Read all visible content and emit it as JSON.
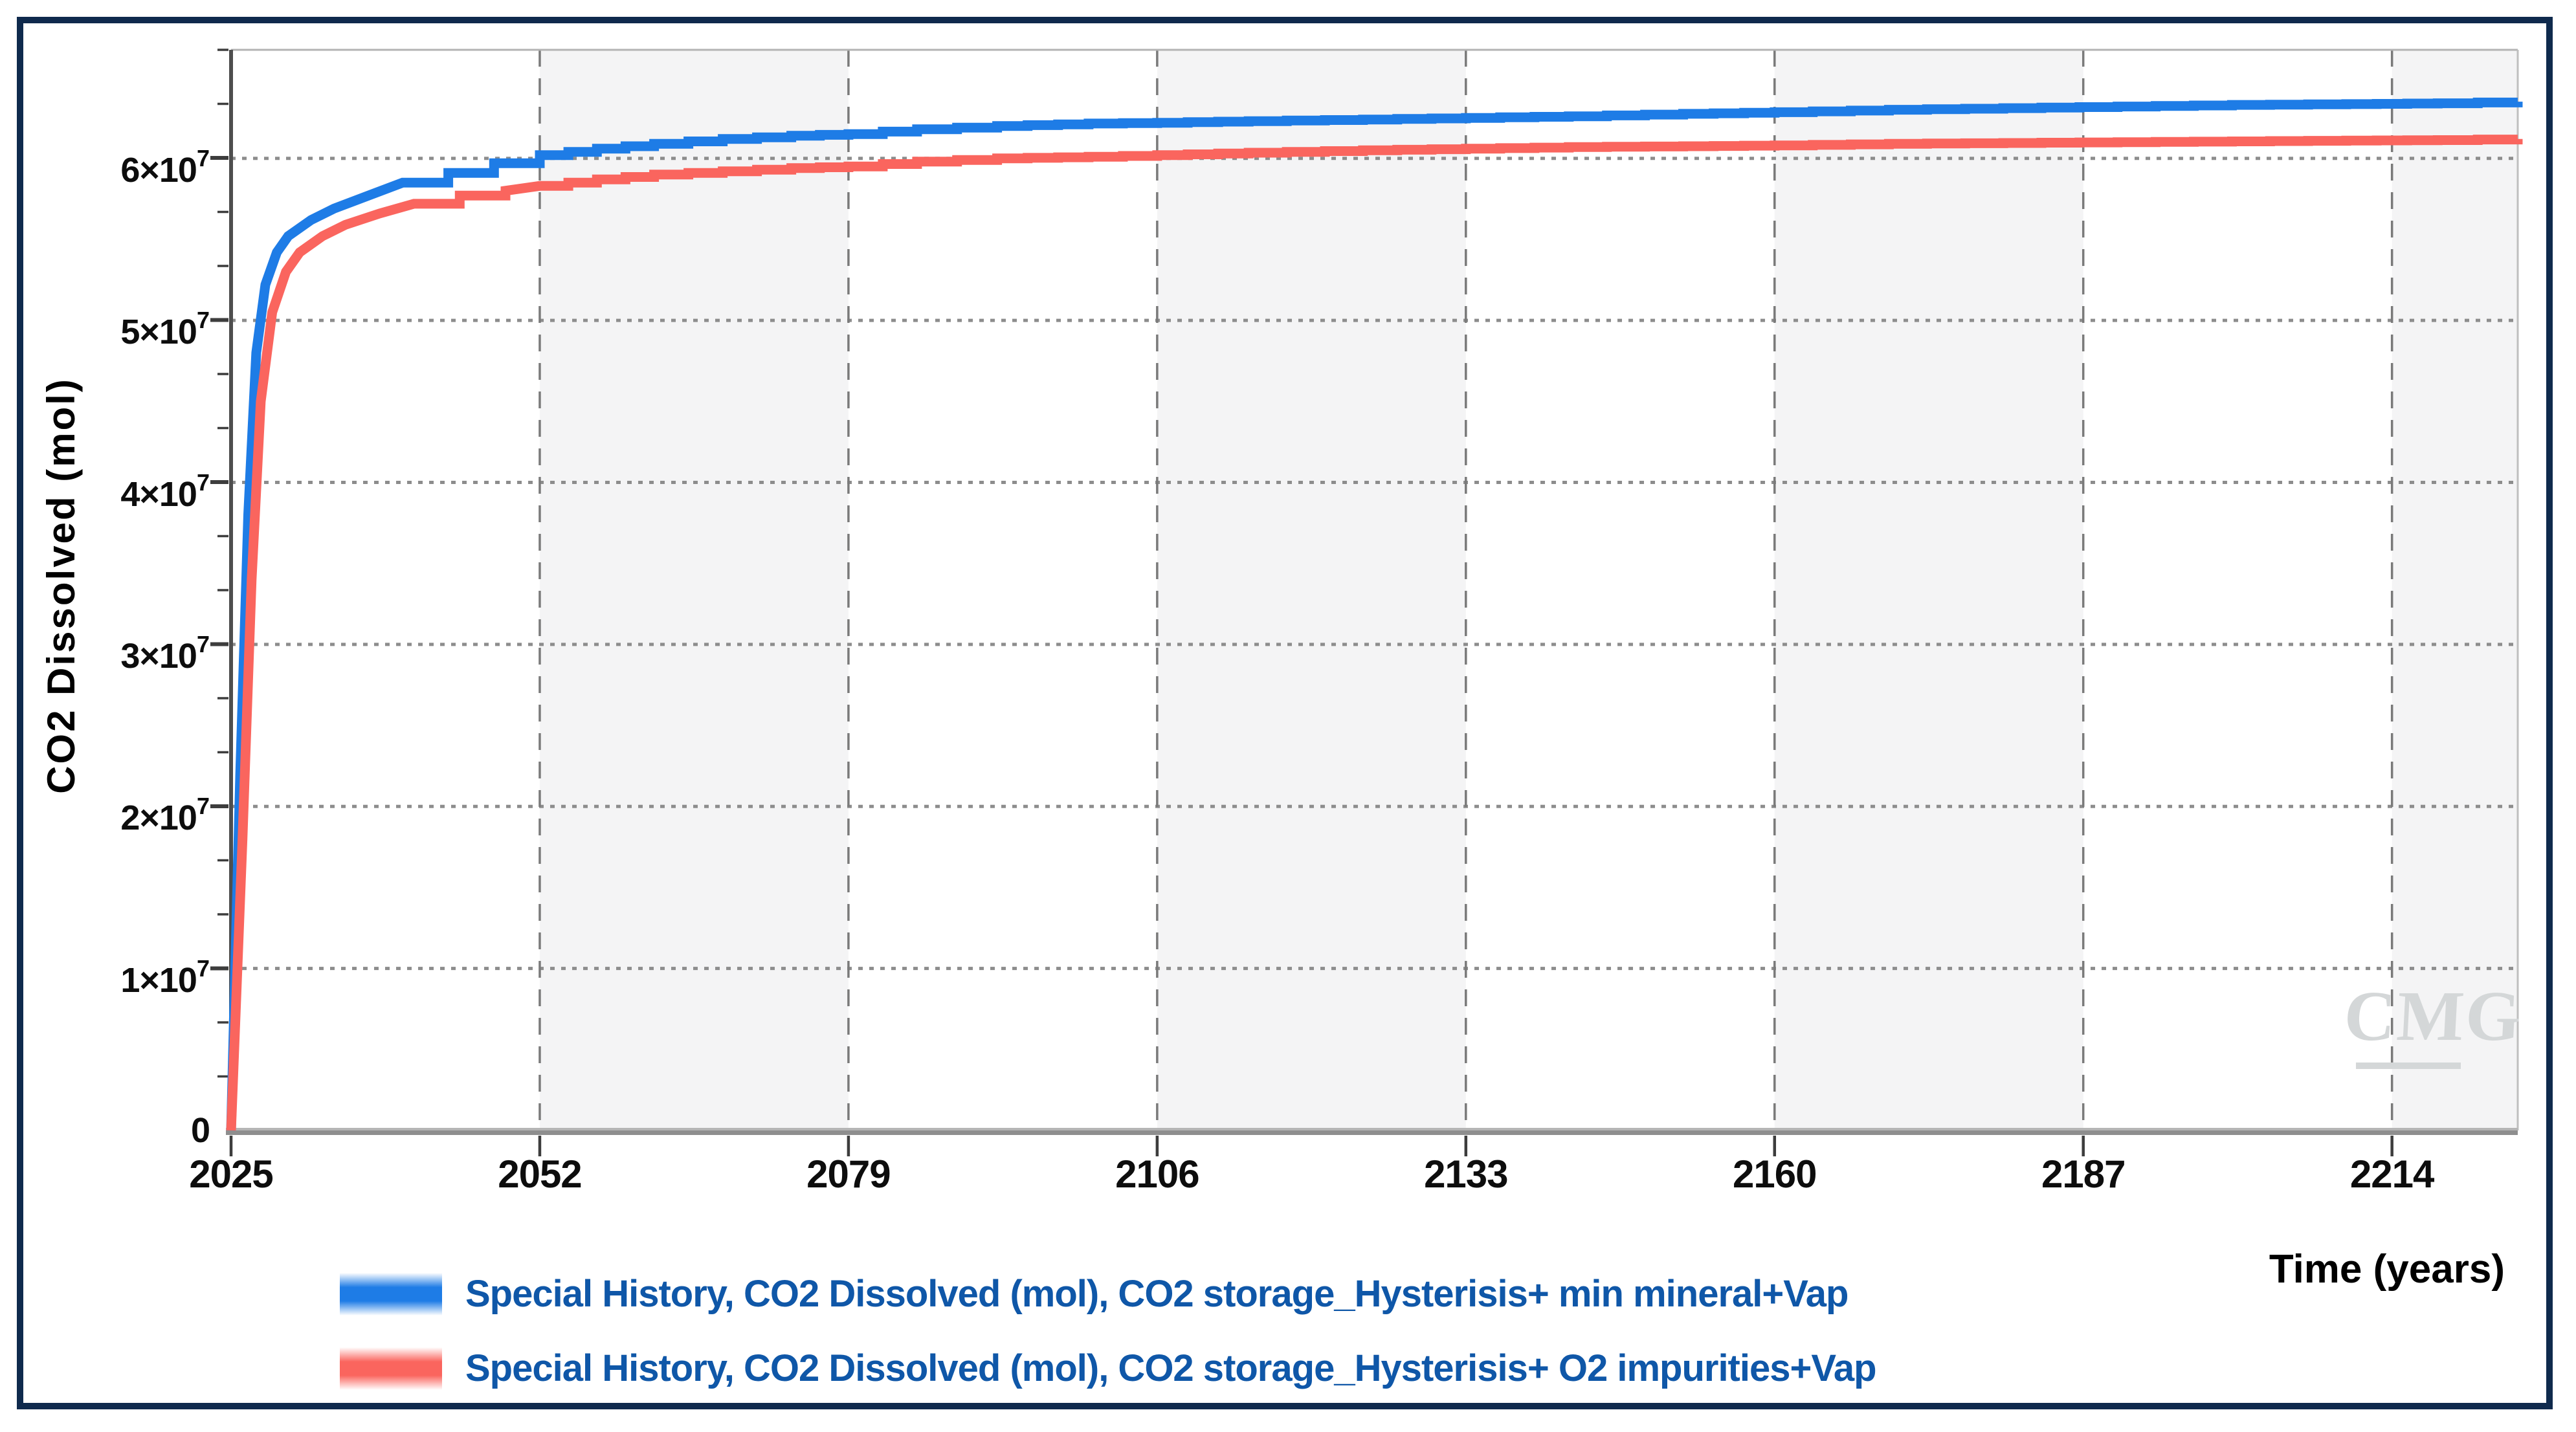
{
  "frame": {
    "border_color": "#0f2a4d"
  },
  "watermark": {
    "text": "CMG"
  },
  "legend": {
    "text_color": "#0f57a8",
    "items": [
      {
        "label": "Special History, CO2 Dissolved (mol), CO2 storage_Hysterisis+ min mineral+Vap",
        "color": "#1e7ce6"
      },
      {
        "label": "Special History, CO2 Dissolved (mol), CO2 storage_Hysterisis+ O2 impurities+Vap",
        "color": "#fa655e"
      }
    ]
  },
  "chart_data": {
    "type": "line",
    "title": "",
    "xlabel": "Time (years)",
    "ylabel": "CO2 Dissolved (mol)",
    "xlim": [
      2025,
      2225
    ],
    "ylim": [
      0,
      66700000
    ],
    "grid": true,
    "legend_position": "bottom",
    "y_minor_divisions_per_major": 3,
    "band_color": "#f4f4f5",
    "x_ticks": [
      {
        "v": 2025,
        "label": "2025"
      },
      {
        "v": 2052,
        "label": "2052"
      },
      {
        "v": 2079,
        "label": "2079"
      },
      {
        "v": 2106,
        "label": "2106"
      },
      {
        "v": 2133,
        "label": "2133"
      },
      {
        "v": 2160,
        "label": "2160"
      },
      {
        "v": 2187,
        "label": "2187"
      },
      {
        "v": 2214,
        "label": "2214"
      }
    ],
    "y_ticks": [
      {
        "v": 0,
        "base": "0",
        "sup": ""
      },
      {
        "v": 10000000,
        "base": "1×10",
        "sup": "7"
      },
      {
        "v": 20000000,
        "base": "2×10",
        "sup": "7"
      },
      {
        "v": 30000000,
        "base": "3×10",
        "sup": "7"
      },
      {
        "v": 40000000,
        "base": "4×10",
        "sup": "7"
      },
      {
        "v": 50000000,
        "base": "5×10",
        "sup": "7"
      },
      {
        "v": 60000000,
        "base": "6×10",
        "sup": "7"
      }
    ],
    "bands": [
      [
        2052,
        2079
      ],
      [
        2106,
        2133
      ],
      [
        2160,
        2187
      ],
      [
        2214,
        2225
      ]
    ],
    "series": [
      {
        "name": "Special History, CO2 Dissolved (mol), CO2 storage_Hysterisis+ min mineral+Vap",
        "color": "#1e7ce6",
        "points": [
          [
            2025,
            0
          ],
          [
            2025.8,
            22000000
          ],
          [
            2026.5,
            38000000
          ],
          [
            2027.2,
            48000000
          ],
          [
            2028,
            52200000
          ],
          [
            2029,
            54200000
          ],
          [
            2030,
            55200000
          ],
          [
            2032,
            56200000
          ],
          [
            2034,
            56900000
          ],
          [
            2037,
            57700000
          ],
          [
            2040,
            58500000
          ],
          [
            2044,
            59100000
          ],
          [
            2048,
            59700000
          ],
          [
            2052,
            60200000
          ],
          [
            2057,
            60600000
          ],
          [
            2062,
            60900000
          ],
          [
            2068,
            61200000
          ],
          [
            2074,
            61400000
          ],
          [
            2079,
            61500000
          ],
          [
            2085,
            61800000
          ],
          [
            2092,
            62000000
          ],
          [
            2100,
            62150000
          ],
          [
            2106,
            62200000
          ],
          [
            2114,
            62300000
          ],
          [
            2124,
            62400000
          ],
          [
            2133,
            62500000
          ],
          [
            2142,
            62600000
          ],
          [
            2152,
            62750000
          ],
          [
            2160,
            62850000
          ],
          [
            2170,
            63000000
          ],
          [
            2180,
            63100000
          ],
          [
            2190,
            63200000
          ],
          [
            2200,
            63300000
          ],
          [
            2210,
            63350000
          ],
          [
            2218,
            63400000
          ],
          [
            2225,
            63500000
          ]
        ]
      },
      {
        "name": "Special History, CO2 Dissolved (mol), CO2 storage_Hysterisis+ O2 impurities+Vap",
        "color": "#fa655e",
        "points": [
          [
            2025,
            0
          ],
          [
            2026,
            18000000
          ],
          [
            2026.8,
            34000000
          ],
          [
            2027.6,
            45000000
          ],
          [
            2028.6,
            50500000
          ],
          [
            2029.8,
            53000000
          ],
          [
            2031,
            54200000
          ],
          [
            2033,
            55200000
          ],
          [
            2035,
            55900000
          ],
          [
            2038,
            56600000
          ],
          [
            2041,
            57200000
          ],
          [
            2045,
            57700000
          ],
          [
            2049,
            58000000
          ],
          [
            2052,
            58300000
          ],
          [
            2057,
            58700000
          ],
          [
            2062,
            59000000
          ],
          [
            2068,
            59200000
          ],
          [
            2074,
            59400000
          ],
          [
            2079,
            59500000
          ],
          [
            2085,
            59800000
          ],
          [
            2092,
            60000000
          ],
          [
            2100,
            60100000
          ],
          [
            2106,
            60200000
          ],
          [
            2114,
            60350000
          ],
          [
            2124,
            60500000
          ],
          [
            2133,
            60600000
          ],
          [
            2142,
            60700000
          ],
          [
            2152,
            60750000
          ],
          [
            2160,
            60800000
          ],
          [
            2170,
            60900000
          ],
          [
            2180,
            60950000
          ],
          [
            2190,
            61000000
          ],
          [
            2200,
            61050000
          ],
          [
            2210,
            61100000
          ],
          [
            2218,
            61130000
          ],
          [
            2225,
            61200000
          ]
        ]
      }
    ]
  }
}
